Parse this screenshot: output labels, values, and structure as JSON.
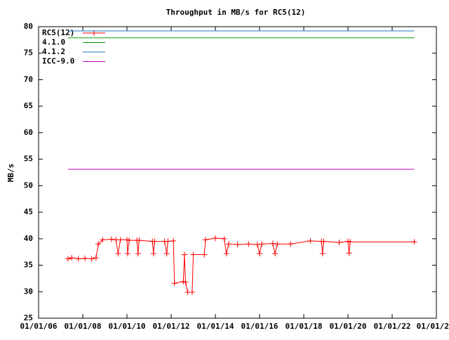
{
  "chart_data": {
    "type": "line",
    "title": "Throughput in MB/s for RC5(12)",
    "y_label": "MB/s",
    "xlim": [
      2006,
      2024
    ],
    "xticks": [
      {
        "value": 2006,
        "label": "01/01/06"
      },
      {
        "value": 2008,
        "label": "01/01/08"
      },
      {
        "value": 2010,
        "label": "01/01/10"
      },
      {
        "value": 2012,
        "label": "01/01/12"
      },
      {
        "value": 2014,
        "label": "01/01/14"
      },
      {
        "value": 2016,
        "label": "01/01/16"
      },
      {
        "value": 2018,
        "label": "01/01/18"
      },
      {
        "value": 2020,
        "label": "01/01/20"
      },
      {
        "value": 2022,
        "label": "01/01/22"
      },
      {
        "value": 2024,
        "label": "01/01/2"
      }
    ],
    "ylim": [
      25,
      80
    ],
    "yticks": [
      25,
      30,
      35,
      40,
      45,
      50,
      55,
      60,
      65,
      70,
      75,
      80
    ],
    "legend": "top-left",
    "series": [
      {
        "name": "RC5(12)",
        "color": "#ff0000",
        "markers": true,
        "x": [
          2007.33,
          2007.5,
          2007.8,
          2008.1,
          2008.4,
          2008.6,
          2008.7,
          2008.9,
          2009.3,
          2009.5,
          2009.6,
          2009.7,
          2010.0,
          2010.03,
          2010.1,
          2010.45,
          2010.5,
          2010.55,
          2011.15,
          2011.2,
          2011.25,
          2011.7,
          2011.8,
          2011.85,
          2012.1,
          2012.15,
          2012.55,
          2012.6,
          2012.65,
          2012.75,
          2012.95,
          2013.0,
          2013.5,
          2013.55,
          2014.0,
          2014.4,
          2014.5,
          2014.6,
          2015.0,
          2015.5,
          2015.9,
          2016.0,
          2016.1,
          2016.6,
          2016.7,
          2016.8,
          2017.4,
          2018.3,
          2018.8,
          2018.85,
          2018.9,
          2019.6,
          2020.0,
          2020.05,
          2020.1,
          2023.0
        ],
        "values": [
          36.2,
          36.4,
          36.2,
          36.3,
          36.2,
          36.4,
          39.0,
          39.8,
          39.9,
          39.8,
          37.2,
          39.8,
          39.8,
          37.2,
          39.7,
          39.7,
          37.2,
          39.7,
          39.5,
          37.2,
          39.5,
          39.5,
          37.2,
          39.5,
          39.6,
          31.6,
          31.9,
          37.0,
          31.8,
          29.9,
          29.9,
          37.0,
          37.0,
          39.8,
          40.1,
          40.0,
          37.2,
          39.0,
          38.9,
          39.0,
          38.9,
          37.2,
          39.0,
          39.1,
          37.2,
          39.0,
          39.0,
          39.6,
          39.5,
          37.2,
          39.5,
          39.3,
          39.5,
          37.3,
          39.4,
          39.4
        ]
      },
      {
        "name": "4.1.0",
        "color": "#00a000",
        "x": [
          2007.33,
          2023.0
        ],
        "values": [
          77.9,
          77.9
        ]
      },
      {
        "name": "4.1.2",
        "color": "#1e78d0",
        "x": [
          2007.33,
          2023.0
        ],
        "values": [
          79.2,
          79.2
        ]
      },
      {
        "name": "ICC-9.0",
        "color": "#c000c0",
        "x": [
          2007.33,
          2023.0
        ],
        "values": [
          53.1,
          53.1
        ]
      }
    ]
  }
}
